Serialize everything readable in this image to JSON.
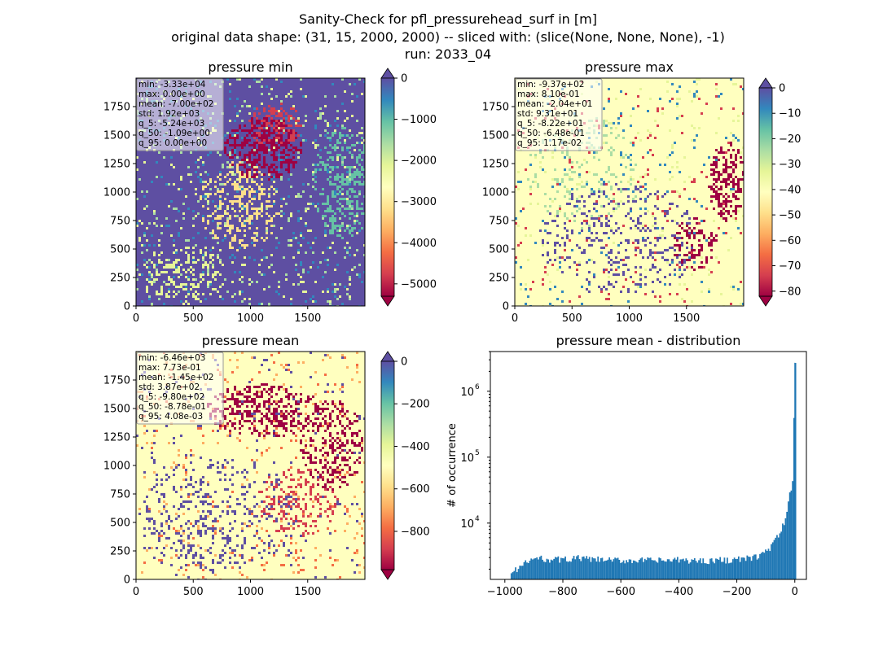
{
  "figure": {
    "title_line1": "Sanity-Check for pfl_pressurehead_surf in [m]",
    "title_line2": "original data shape: (31, 15, 2000, 2000) -- sliced with: (slice(None, None, None), -1)",
    "title_line3": "run: 2033_04"
  },
  "chart_data": [
    {
      "type": "heatmap",
      "title": "pressure min",
      "colormap": "Spectral",
      "colorbar": {
        "min": -5300,
        "max": 0,
        "ticks": [
          0,
          -1000,
          -2000,
          -3000,
          -4000,
          -5000
        ],
        "ticklabels": [
          "0",
          "−1000",
          "−2000",
          "−3000",
          "−4000",
          "−5000"
        ],
        "extend": "both"
      },
      "xlim": [
        0,
        2000
      ],
      "ylim": [
        0,
        2000
      ],
      "xticks": [
        0,
        500,
        1000,
        1500
      ],
      "yticks": [
        0,
        250,
        500,
        750,
        1000,
        1250,
        1500,
        1750
      ],
      "stats": [
        "min: -3.33e+04",
        "max: 0.00e+00",
        "mean: -7.00e+02",
        "std: 1.92e+03",
        "q_5: -5.24e+03",
        "q_50: -1.09e+00",
        "q_95: 0.00e+00"
      ]
    },
    {
      "type": "heatmap",
      "title": "pressure max",
      "colormap": "Spectral",
      "colorbar": {
        "min": -82,
        "max": 0,
        "ticks": [
          0,
          -10,
          -20,
          -30,
          -40,
          -50,
          -60,
          -70,
          -80
        ],
        "ticklabels": [
          "0",
          "−10",
          "−20",
          "−30",
          "−40",
          "−50",
          "−60",
          "−70",
          "−80"
        ],
        "extend": "both"
      },
      "xlim": [
        0,
        2000
      ],
      "ylim": [
        0,
        2000
      ],
      "xticks": [
        0,
        500,
        1000,
        1500
      ],
      "yticks": [
        0,
        250,
        500,
        750,
        1000,
        1250,
        1500,
        1750
      ],
      "stats": [
        "min: -9.37e+02",
        "max: 8.10e-01",
        "mean: -2.04e+01",
        "std: 9.31e+01",
        "q_5: -8.22e+01",
        "q_50: -6.48e-01",
        "q_95: 1.17e-02"
      ]
    },
    {
      "type": "heatmap",
      "title": "pressure mean",
      "colormap": "Spectral",
      "colorbar": {
        "min": -980,
        "max": 0,
        "ticks": [
          0,
          -200,
          -400,
          -600,
          -800
        ],
        "ticklabels": [
          "0",
          "−200",
          "−400",
          "−600",
          "−800"
        ],
        "extend": "both"
      },
      "xlim": [
        0,
        2000
      ],
      "ylim": [
        0,
        2000
      ],
      "xticks": [
        0,
        500,
        1000,
        1500
      ],
      "yticks": [
        0,
        250,
        500,
        750,
        1000,
        1250,
        1500,
        1750
      ],
      "stats": [
        "min: -6.46e+03",
        "max: 7.73e-01",
        "mean: -1.45e+02",
        "std: 3.87e+02",
        "q_5: -9.80e+02",
        "q_50: -8.78e-01",
        "q_95: 4.08e-03"
      ]
    },
    {
      "type": "bar",
      "title": "pressure mean - distribution",
      "xlabel": "",
      "ylabel": "# of occurrence",
      "xlim": [
        -1050,
        40
      ],
      "ylim": [
        1400,
        4000000
      ],
      "yscale": "log",
      "xticks": [
        -1000,
        -800,
        -600,
        -400,
        -200,
        0
      ],
      "xticklabels": [
        "−1000",
        "−800",
        "−600",
        "−400",
        "−200",
        "0"
      ],
      "yticks": [
        10000,
        100000,
        1000000
      ],
      "yticklabels": [
        "10",
        "10",
        "10"
      ],
      "ytick_exponents": [
        "4",
        "5",
        "6"
      ],
      "color": "#1f77b4",
      "anchors": [
        [
          -980,
          1700
        ],
        [
          -960,
          2000
        ],
        [
          -920,
          2600
        ],
        [
          -900,
          2900
        ],
        [
          -850,
          2850
        ],
        [
          -800,
          2800
        ],
        [
          -750,
          2950
        ],
        [
          -700,
          2800
        ],
        [
          -650,
          2750
        ],
        [
          -600,
          2700
        ],
        [
          -550,
          2750
        ],
        [
          -500,
          2700
        ],
        [
          -450,
          2700
        ],
        [
          -400,
          2750
        ],
        [
          -350,
          2700
        ],
        [
          -300,
          2700
        ],
        [
          -250,
          2750
        ],
        [
          -200,
          2800
        ],
        [
          -180,
          2850
        ],
        [
          -160,
          2900
        ],
        [
          -140,
          3000
        ],
        [
          -120,
          3300
        ],
        [
          -100,
          3700
        ],
        [
          -80,
          4500
        ],
        [
          -60,
          6000
        ],
        [
          -45,
          8000
        ],
        [
          -35,
          11000
        ],
        [
          -25,
          16000
        ],
        [
          -15,
          30000
        ],
        [
          -8,
          45000
        ],
        [
          -4,
          55000
        ],
        [
          -1,
          2700000
        ]
      ]
    }
  ]
}
